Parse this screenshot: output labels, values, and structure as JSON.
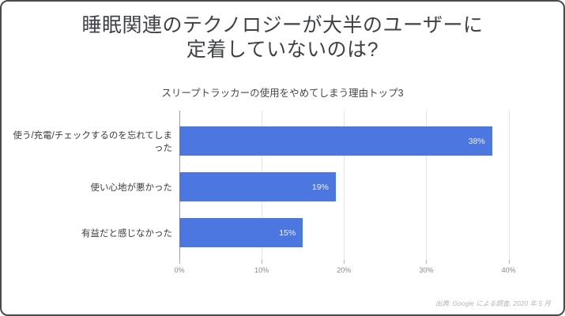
{
  "slide": {
    "title_line1": "睡眠関連のテクノロジーが大半のユーザーに",
    "title_line2": "定着していないのは?",
    "source_note": "出典: Google による調査, 2020 年 5 月"
  },
  "chart_data": {
    "type": "bar",
    "orientation": "horizontal",
    "title": "スリープトラッカーの使用をやめてしまう理由トップ3",
    "categories": [
      "使う/充電/チェックするのを忘れてしまった",
      "使い心地が悪かった",
      "有益だと感じなかった"
    ],
    "values": [
      38,
      19,
      15
    ],
    "value_labels": [
      "38%",
      "19%",
      "15%"
    ],
    "xticks": [
      0,
      10,
      20,
      30,
      40
    ],
    "xtick_labels": [
      "0%",
      "10%",
      "20%",
      "30%",
      "40%"
    ],
    "xmax": 41,
    "xlabel": "",
    "ylabel": "",
    "grid": true,
    "legend": "none",
    "bar_color": "#4d77e0",
    "value_label_color": "#eef2fd"
  }
}
